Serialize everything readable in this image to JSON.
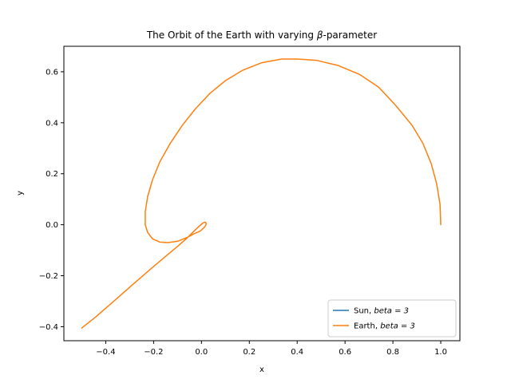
{
  "chart_data": {
    "type": "line",
    "title": "The Orbit of the Earth with varying β-parameter",
    "xlabel": "x",
    "ylabel": "y",
    "xlim": [
      -0.575,
      1.08
    ],
    "ylim": [
      -0.455,
      0.7
    ],
    "xticks": [
      -0.4,
      -0.2,
      0.0,
      0.2,
      0.4,
      0.6,
      0.8,
      1.0
    ],
    "xtick_labels": [
      "−0.4",
      "−0.2",
      "0.0",
      "0.2",
      "0.4",
      "0.6",
      "0.8",
      "1.0"
    ],
    "yticks": [
      -0.4,
      -0.2,
      0.0,
      0.2,
      0.4,
      0.6
    ],
    "ytick_labels": [
      "−0.4",
      "−0.2",
      "0.0",
      "0.2",
      "0.4",
      "0.6"
    ],
    "grid": false,
    "legend_position": "lower right",
    "series": [
      {
        "name": "Sun, beta = 3",
        "legend_name": "Sun, ",
        "legend_math": "beta = 3",
        "color": "#1f77b4",
        "x": [
          0.0
        ],
        "y": [
          0.0
        ]
      },
      {
        "name": "Earth, beta = 3",
        "legend_name": "Earth, ",
        "legend_math": "beta = 3",
        "color": "#ff7f0e",
        "x": [
          1.0,
          0.997,
          0.983,
          0.96,
          0.925,
          0.88,
          0.81,
          0.74,
          0.66,
          0.57,
          0.48,
          0.4,
          0.335,
          0.25,
          0.17,
          0.1,
          0.035,
          -0.025,
          -0.08,
          -0.13,
          -0.175,
          -0.205,
          -0.225,
          -0.235,
          -0.235,
          -0.225,
          -0.205,
          -0.175,
          -0.14,
          -0.1,
          -0.06,
          -0.03,
          -0.005,
          0.01,
          0.018,
          0.02,
          0.016,
          0.008,
          0.0,
          -0.01,
          -0.03,
          -0.06,
          -0.1,
          -0.16,
          -0.23,
          -0.3,
          -0.37,
          -0.44,
          -0.5
        ],
        "y": [
          0.0,
          0.08,
          0.16,
          0.24,
          0.32,
          0.39,
          0.47,
          0.54,
          0.59,
          0.625,
          0.645,
          0.65,
          0.65,
          0.635,
          0.605,
          0.565,
          0.515,
          0.455,
          0.39,
          0.32,
          0.245,
          0.175,
          0.11,
          0.05,
          0.0,
          -0.03,
          -0.055,
          -0.068,
          -0.07,
          -0.065,
          -0.05,
          -0.035,
          -0.025,
          -0.012,
          -0.002,
          0.005,
          0.01,
          0.008,
          0.002,
          -0.006,
          -0.024,
          -0.052,
          -0.085,
          -0.132,
          -0.188,
          -0.245,
          -0.303,
          -0.36,
          -0.405
        ]
      }
    ]
  }
}
